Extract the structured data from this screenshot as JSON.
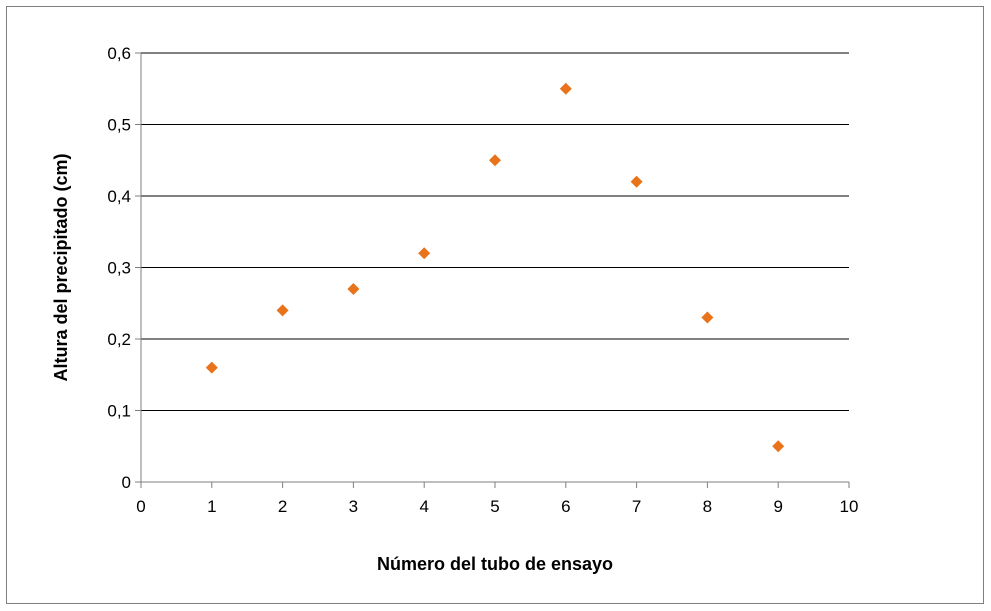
{
  "chart_data": {
    "type": "scatter",
    "title": "",
    "xlabel": "Número del tubo de ensayo",
    "ylabel": "Altura del precipitado (cm)",
    "xlim": [
      0,
      10
    ],
    "ylim": [
      0,
      0.6
    ],
    "x_ticks": [
      0,
      1,
      2,
      3,
      4,
      5,
      6,
      7,
      8,
      9,
      10
    ],
    "x_tick_labels": [
      "0",
      "1",
      "2",
      "3",
      "4",
      "5",
      "6",
      "7",
      "8",
      "9",
      "10"
    ],
    "y_ticks": [
      0,
      0.1,
      0.2,
      0.3,
      0.4,
      0.5,
      0.6
    ],
    "y_tick_labels": [
      "0",
      "0,1",
      "0,2",
      "0,3",
      "0,4",
      "0,5",
      "0,6"
    ],
    "grid": "horizontal",
    "legend": "none",
    "marker": "diamond",
    "colors": {
      "marker": "#e8731a",
      "grid": "#000000",
      "axis": "#7f7f7f"
    },
    "series": [
      {
        "x": [
          1,
          2,
          3,
          4,
          5,
          6,
          7,
          8,
          9
        ],
        "y": [
          0.16,
          0.24,
          0.27,
          0.32,
          0.45,
          0.55,
          0.42,
          0.23,
          0.05
        ]
      }
    ]
  }
}
